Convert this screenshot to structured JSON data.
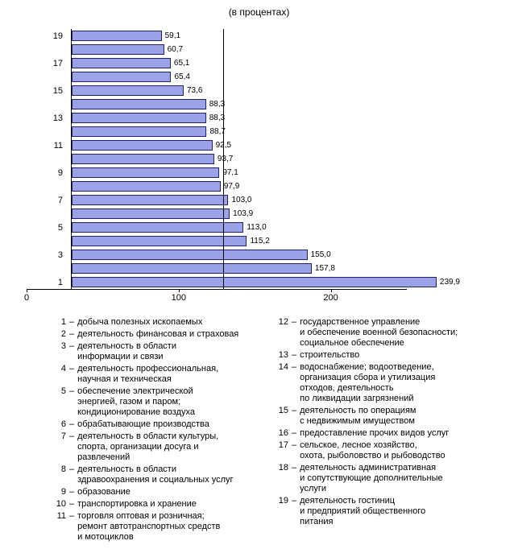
{
  "chart_data": {
    "type": "bar",
    "orientation": "horizontal",
    "title": "(в процентах)",
    "categories": [
      19,
      18,
      17,
      16,
      15,
      14,
      13,
      12,
      11,
      10,
      9,
      8,
      7,
      6,
      5,
      4,
      3,
      2,
      1
    ],
    "values": [
      59.1,
      60.7,
      65.1,
      65.4,
      73.6,
      88.3,
      88.3,
      88.7,
      92.5,
      93.7,
      97.1,
      97.9,
      103.0,
      103.9,
      113.0,
      115.2,
      155.0,
      157.8,
      239.9
    ],
    "value_labels": [
      "59,1",
      "60,7",
      "65,1",
      "65,4",
      "73,6",
      "88,3",
      "88,3",
      "88,7",
      "92,5",
      "93,7",
      "97,1",
      "97,9",
      "103,0",
      "103,9",
      "113,0",
      "115,2",
      "155,0",
      "157,8",
      "239,9"
    ],
    "y_tick_labels": [
      19,
      17,
      15,
      13,
      11,
      9,
      7,
      5,
      3,
      1
    ],
    "x_ticks": [
      0,
      100,
      200
    ],
    "xlim": [
      0,
      250
    ],
    "reference_line_x": 100,
    "grid": false,
    "legend_position": "below",
    "bar_color": "#9ca2e8",
    "bar_border_color": "#222266",
    "axis_color": "#000000"
  },
  "legend": {
    "separator": "–",
    "left": [
      {
        "num": "1",
        "text": "добыча полезных ископаемых"
      },
      {
        "num": "2",
        "text": "деятельность финансовая и страховая"
      },
      {
        "num": "3",
        "text": "деятельность в области\nинформации и связи"
      },
      {
        "num": "4",
        "text": "деятельность профессиональная,\nнаучная и техническая"
      },
      {
        "num": "5",
        "text": "обеспечение электрической\nэнергией, газом и паром;\nкондиционирование воздуха"
      },
      {
        "num": "6",
        "text": "обрабатывающие производства"
      },
      {
        "num": "7",
        "text": "деятельность в области культуры,\nспорта, организации досуга и\nразвлечений"
      },
      {
        "num": "8",
        "text": "деятельность в области\nздравоохранения и социальных услуг"
      },
      {
        "num": "9",
        "text": "образование"
      },
      {
        "num": "10",
        "text": "транспортировка и хранение"
      },
      {
        "num": "11",
        "text": "торговля оптовая и розничная;\nремонт автотранспортных средств\nи мотоциклов"
      }
    ],
    "right": [
      {
        "num": "12",
        "text": "государственное управление\nи обеспечение военной безопасности;\nсоциальное обеспечение"
      },
      {
        "num": "13",
        "text": "строительство"
      },
      {
        "num": "14",
        "text": "водоснабжение; водоотведение,\nорганизация сбора и утилизация\nотходов, деятельность\nпо ликвидации загрязнений"
      },
      {
        "num": "15",
        "text": "деятельность по операциям\nс недвижимым имуществом"
      },
      {
        "num": "16",
        "text": "предоставление прочих видов услуг"
      },
      {
        "num": "17",
        "text": "сельское, лесное хозяйство,\nохота, рыболовство и рыбоводство"
      },
      {
        "num": "18",
        "text": "деятельность административная\nи сопутствующие дополнительные\nуслуги"
      },
      {
        "num": "19",
        "text": "деятельность гостиниц\nи предприятий общественного\nпитания"
      }
    ]
  }
}
